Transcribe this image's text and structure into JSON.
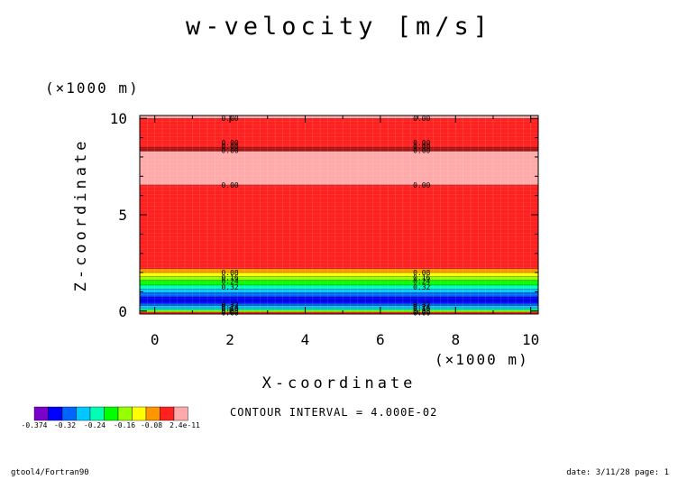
{
  "chart_data": {
    "type": "heatmap",
    "title": "w-velocity [m/s]",
    "xlabel": "X-coordinate",
    "ylabel": "Z-coordinate",
    "x_scale_note": "(×1000 m)",
    "y_scale_note": "(×1000 m)",
    "xlim": [
      -0.4,
      10.2
    ],
    "ylim": [
      -0.15,
      10.15
    ],
    "x_ticks": [
      0,
      2,
      4,
      6,
      8,
      10
    ],
    "y_ticks": [
      0,
      5,
      10
    ],
    "contour_interval_text": "CONTOUR INTERVAL = 4.000E-02",
    "colorbar": {
      "colors": [
        "#7a00cc",
        "#0000ff",
        "#0064ff",
        "#00c8ff",
        "#00ffb4",
        "#00ff00",
        "#96ff00",
        "#ffff00",
        "#ff9600",
        "#ff2020",
        "#ffaaaa"
      ],
      "labels": [
        "-0.374",
        "-0.32",
        "-0.24",
        "-0.16",
        "-0.08",
        "2.4e-11"
      ]
    },
    "bands": [
      {
        "z0": -0.15,
        "z1": -0.05,
        "color": "#ff2020"
      },
      {
        "z0": -0.05,
        "z1": 0.05,
        "color": "#96ff00"
      },
      {
        "z0": 0.05,
        "z1": 0.15,
        "color": "#00ffb4"
      },
      {
        "z0": 0.15,
        "z1": 0.28,
        "color": "#00c8ff"
      },
      {
        "z0": 0.28,
        "z1": 0.4,
        "color": "#0064ff"
      },
      {
        "z0": 0.4,
        "z1": 0.55,
        "color": "#0000ff"
      },
      {
        "z0": 0.55,
        "z1": 0.75,
        "color": "#0000ff"
      },
      {
        "z0": 0.75,
        "z1": 0.95,
        "color": "#0064ff"
      },
      {
        "z0": 0.95,
        "z1": 1.15,
        "color": "#00c8ff"
      },
      {
        "z0": 1.15,
        "z1": 1.35,
        "color": "#00ffb4"
      },
      {
        "z0": 1.35,
        "z1": 1.6,
        "color": "#00ff00"
      },
      {
        "z0": 1.6,
        "z1": 1.8,
        "color": "#96ff00"
      },
      {
        "z0": 1.8,
        "z1": 2.0,
        "color": "#ffff00"
      },
      {
        "z0": 2.0,
        "z1": 2.2,
        "color": "#ff9600"
      },
      {
        "z0": 2.2,
        "z1": 6.55,
        "color": "#ff2020"
      },
      {
        "z0": 6.55,
        "z1": 8.3,
        "color": "#ffaaaa"
      },
      {
        "z0": 8.3,
        "z1": 8.5,
        "color": "#b01010"
      },
      {
        "z0": 8.5,
        "z1": 10.0,
        "color": "#ff2020"
      },
      {
        "z0": 10.0,
        "z1": 10.15,
        "color": "#ffaaaa"
      }
    ],
    "contour_labels": [
      {
        "z": 10.0,
        "text": "0.00"
      },
      {
        "z": 8.75,
        "text": "0.00"
      },
      {
        "z": 8.55,
        "text": "0.00"
      },
      {
        "z": 8.35,
        "text": "0.00"
      },
      {
        "z": 6.55,
        "text": "0.00"
      },
      {
        "z": 2.0,
        "text": "0.08"
      },
      {
        "z": 1.75,
        "text": "0.16"
      },
      {
        "z": 1.55,
        "text": "0.24"
      },
      {
        "z": 1.25,
        "text": "0.32"
      },
      {
        "z": 0.35,
        "text": "0.32"
      },
      {
        "z": 0.22,
        "text": "0.24"
      },
      {
        "z": 0.12,
        "text": "0.16"
      },
      {
        "z": 0.02,
        "text": "0.08"
      },
      {
        "z": -0.08,
        "text": "0.00"
      }
    ],
    "label_x_positions": [
      2.0,
      7.1
    ]
  },
  "footer": {
    "left": "gtool4/Fortran90",
    "right": "date: 3/11/28 page: 1"
  }
}
